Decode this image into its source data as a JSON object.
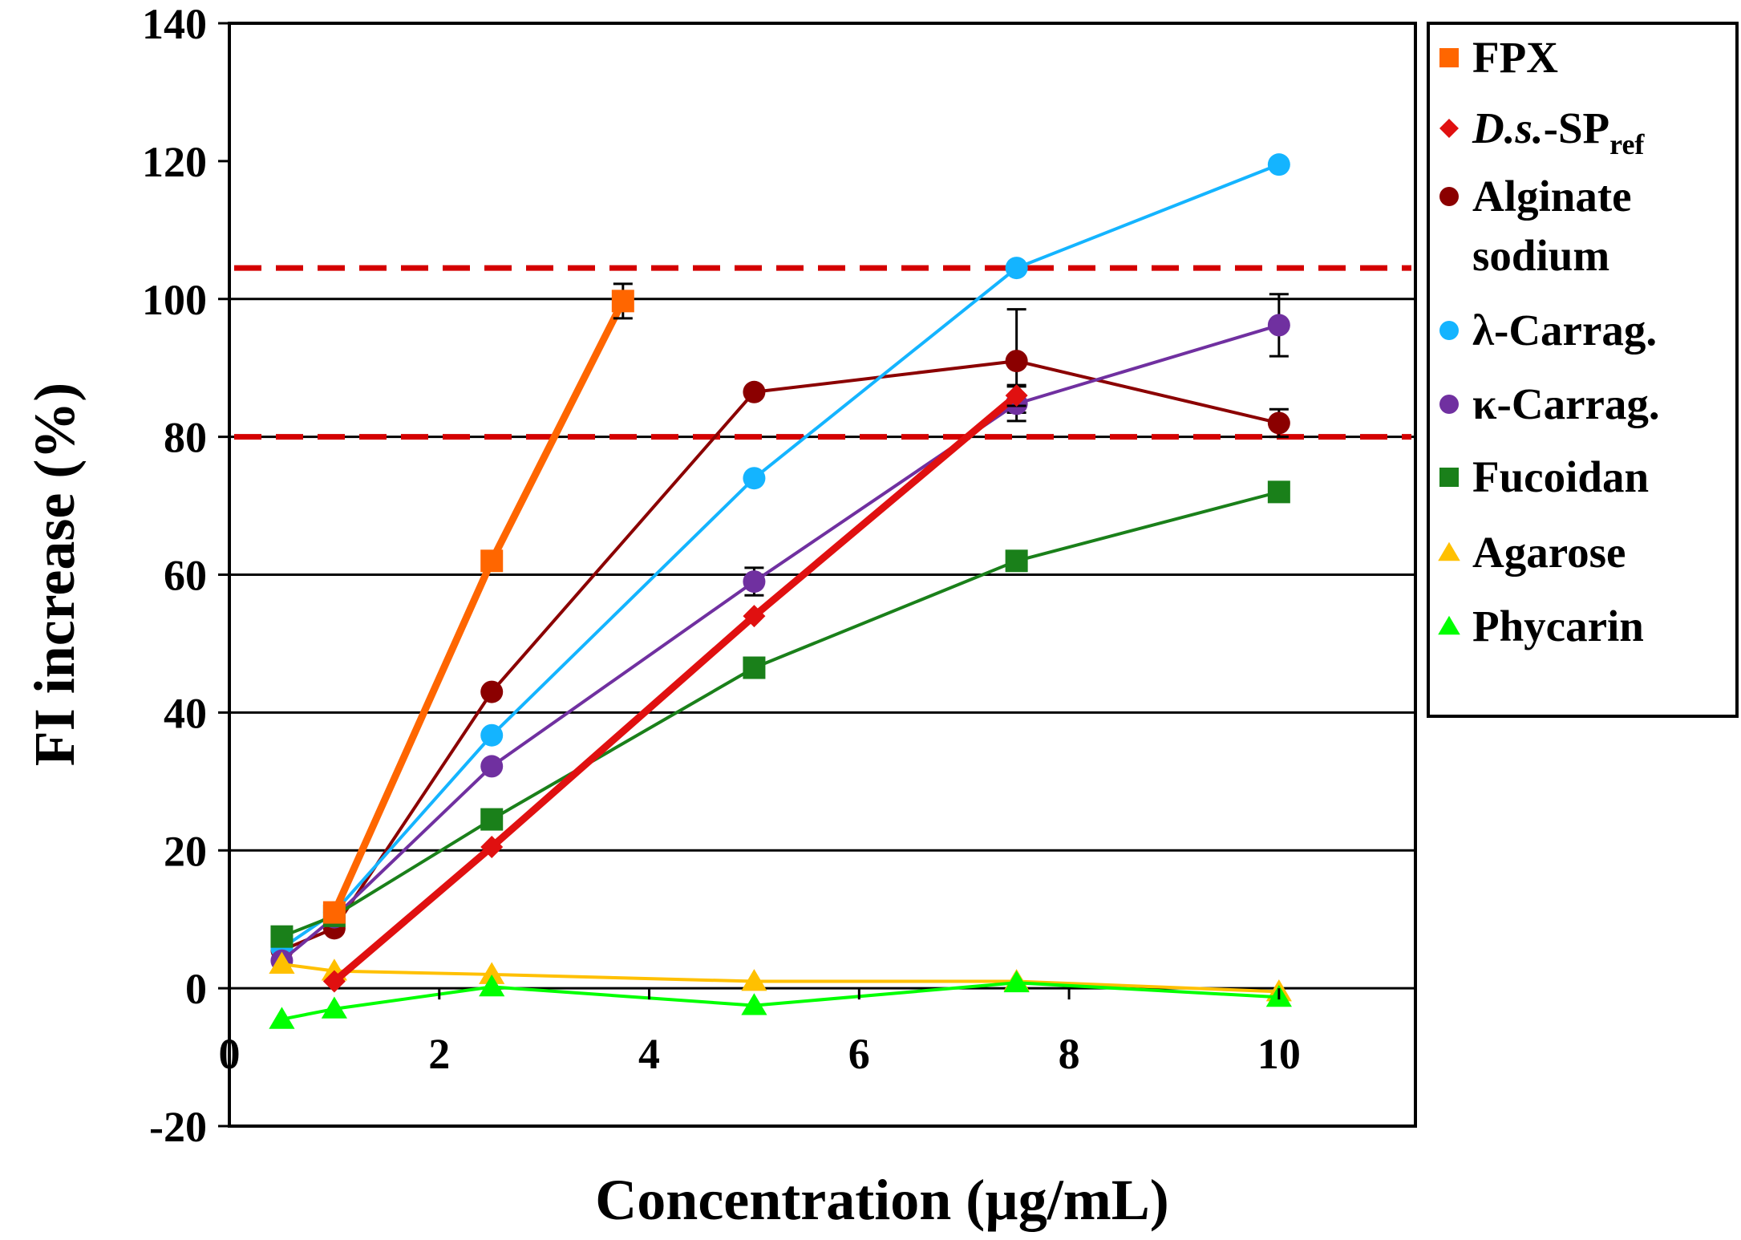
{
  "chart_data": {
    "type": "line",
    "title": "",
    "xlabel": "Concentration (µg/mL)",
    "ylabel": "FI increase (%)",
    "xlim": [
      0,
      11.3
    ],
    "ylim": [
      -20,
      140
    ],
    "x_ticks": [
      0,
      2,
      4,
      6,
      8,
      10
    ],
    "y_ticks": [
      -20,
      0,
      20,
      40,
      60,
      80,
      100,
      120,
      140
    ],
    "x_tick_labels": [
      "0",
      "2",
      "4",
      "6",
      "8",
      "10"
    ],
    "y_tick_labels": [
      "-20",
      "0",
      "20",
      "40",
      "60",
      "80",
      "100",
      "120",
      "140"
    ],
    "gridlines_y": [
      0,
      20,
      40,
      60,
      80,
      100
    ],
    "reference_lines": [
      {
        "y": 104.5,
        "style": "dashed",
        "color": "#d40000"
      },
      {
        "y": 80,
        "style": "dashed",
        "color": "#d40000"
      }
    ],
    "legend_position": "right",
    "series": [
      {
        "name": "FPX",
        "legend_label": "FPX",
        "color": "#ff6600",
        "marker": "square",
        "width": "thick",
        "x": [
          1,
          2.5,
          3.75
        ],
        "y": [
          11,
          62,
          99.7
        ],
        "err": [
          0,
          0,
          2.5
        ]
      },
      {
        "name": "D.s.-SPref",
        "legend_main": "D.s.",
        "legend_suffix": "-SP",
        "legend_sub": "ref",
        "color": "#e01010",
        "marker": "diamond",
        "width": "thick",
        "x": [
          1,
          2.5,
          5,
          7.5
        ],
        "y": [
          1,
          20.5,
          54,
          86
        ],
        "err": [
          0,
          0,
          0,
          1.5
        ]
      },
      {
        "name": "Alginate sodium",
        "legend_line1": "Alginate",
        "legend_line2": "sodium",
        "color": "#8b0000",
        "marker": "circle",
        "width": "normal",
        "x": [
          0.5,
          1,
          2.5,
          5,
          7.5,
          10
        ],
        "y": [
          5.5,
          8.7,
          43,
          86.5,
          91,
          82
        ],
        "err": [
          0,
          0,
          0,
          0,
          7.5,
          2
        ]
      },
      {
        "name": "λ-Carrag.",
        "legend_label": "λ-Carrag.",
        "color": "#14b4ff",
        "marker": "circle",
        "width": "normal",
        "x": [
          0.5,
          1,
          2.5,
          5,
          7.5,
          10
        ],
        "y": [
          5.8,
          11,
          36.7,
          74,
          104.5,
          119.5
        ],
        "err": [
          0,
          0,
          0,
          0,
          0,
          0
        ]
      },
      {
        "name": "κ-Carrag.",
        "legend_label": "κ-Carrag.",
        "color": "#7030a0",
        "marker": "circle",
        "width": "normal",
        "x": [
          0.5,
          1,
          2.5,
          5,
          7.5,
          10
        ],
        "y": [
          4,
          10.3,
          32.2,
          59,
          84.8,
          96.2
        ],
        "err": [
          0,
          0,
          0,
          2,
          2.5,
          4.5
        ]
      },
      {
        "name": "Fucoidan",
        "legend_label": "Fucoidan",
        "color": "#1a801a",
        "marker": "square",
        "width": "normal",
        "x": [
          0.5,
          1,
          2.5,
          5,
          7.5,
          10
        ],
        "y": [
          7.5,
          10.5,
          24.5,
          46.5,
          62,
          72
        ],
        "err": [
          0,
          0,
          0,
          0,
          0,
          0
        ]
      },
      {
        "name": "Agarose",
        "legend_label": "Agarose",
        "color": "#ffc000",
        "marker": "triangle",
        "width": "normal",
        "x": [
          0.5,
          1,
          2.5,
          5,
          7.5,
          10
        ],
        "y": [
          3.5,
          2.5,
          2,
          1,
          1,
          -0.5
        ],
        "err": [
          0,
          0,
          0,
          0,
          0,
          0
        ]
      },
      {
        "name": "Phycarin",
        "legend_label": "Phycarin",
        "color": "#00ff00",
        "marker": "triangle",
        "width": "normal",
        "x": [
          0.5,
          1,
          2.5,
          5,
          7.5,
          10
        ],
        "y": [
          -4.5,
          -3,
          0.2,
          -2.5,
          0.8,
          -1.3
        ],
        "err": [
          0,
          0,
          0,
          0,
          0,
          0
        ]
      }
    ]
  }
}
